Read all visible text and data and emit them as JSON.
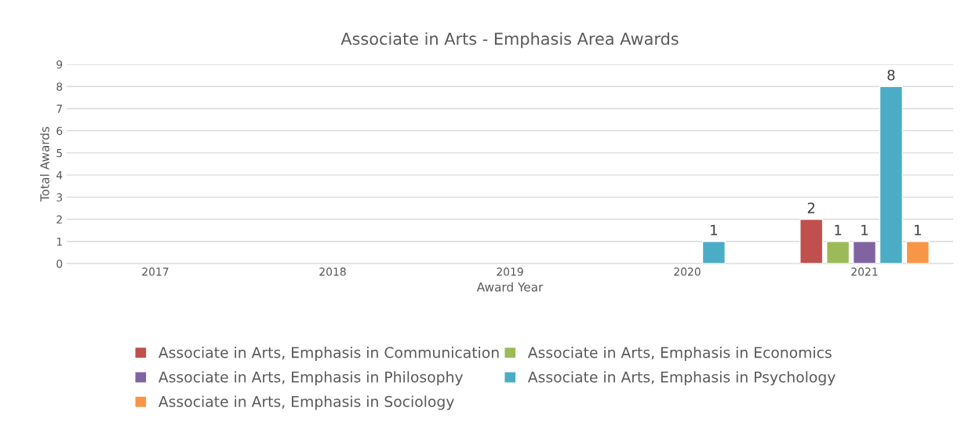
{
  "chart_data": {
    "type": "bar",
    "title": "Associate in Arts - Emphasis Area Awards",
    "xlabel": "Award Year",
    "ylabel": "Total Awards",
    "categories": [
      "2017",
      "2018",
      "2019",
      "2020",
      "2021"
    ],
    "series": [
      {
        "name": "Associate in Arts, Emphasis in Communication",
        "color": "#c0504d",
        "values": [
          null,
          null,
          null,
          null,
          2
        ]
      },
      {
        "name": "Associate in Arts, Emphasis in Economics",
        "color": "#9bbb59",
        "values": [
          null,
          null,
          null,
          null,
          1
        ]
      },
      {
        "name": "Associate in Arts, Emphasis in Philosophy",
        "color": "#8064a2",
        "values": [
          null,
          null,
          null,
          null,
          1
        ]
      },
      {
        "name": "Associate in Arts, Emphasis in Psychology",
        "color": "#4bacc6",
        "values": [
          null,
          null,
          null,
          1,
          8
        ]
      },
      {
        "name": "Associate in Arts, Emphasis in Sociology",
        "color": "#f79646",
        "values": [
          null,
          null,
          null,
          null,
          1
        ]
      }
    ],
    "ylim": [
      0,
      9
    ],
    "yticks": [
      0,
      1,
      2,
      3,
      4,
      5,
      6,
      7,
      8,
      9
    ],
    "grid": "y",
    "legend": "bottom",
    "data_labels": true
  }
}
